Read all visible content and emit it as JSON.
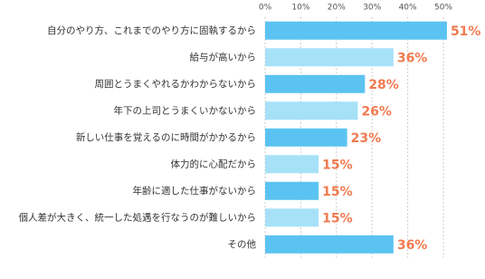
{
  "chart_data": {
    "type": "barh",
    "categories": [
      "自分のやり方、これまでのやり方に固執するから",
      "給与が高いから",
      "周囲とうまくやれるかわからないから",
      "年下の上司とうまくいかないから",
      "新しい仕事を覚えるのに時間がかかるから",
      "体力的に心配だから",
      "年齢に適した仕事がないから",
      "個人差が大きく、統一した処遇を行なうのが難しいから",
      "その他"
    ],
    "values": [
      51,
      36,
      28,
      26,
      23,
      15,
      15,
      15,
      36
    ],
    "value_labels": [
      "51%",
      "36%",
      "28%",
      "26%",
      "23%",
      "15%",
      "15%",
      "15%",
      "36%"
    ],
    "colors": [
      "#5bc3f1",
      "#a6e1f8",
      "#5bc3f1",
      "#a6e1f8",
      "#5bc3f1",
      "#a6e1f8",
      "#5bc3f1",
      "#a6e1f8",
      "#5bc3f1"
    ],
    "label_color": "#f07a4f",
    "xlim": [
      0,
      50
    ],
    "xticks": [
      {
        "value": 0,
        "label": "0%"
      },
      {
        "value": 10,
        "label": "10%"
      },
      {
        "value": 20,
        "label": "20%"
      },
      {
        "value": 30,
        "label": "30%"
      },
      {
        "value": 40,
        "label": "40%"
      },
      {
        "value": 50,
        "label": "50%"
      }
    ],
    "grid": true
  }
}
